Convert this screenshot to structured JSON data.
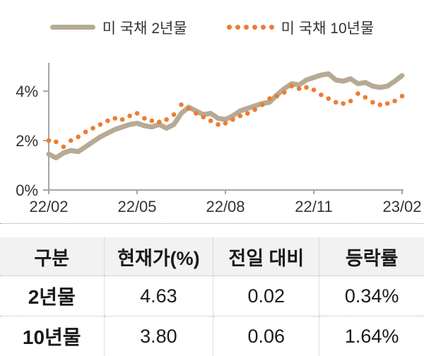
{
  "legend": {
    "series_2y_label": "미 국채 2년물",
    "series_10y_label": "미 국채 10년물"
  },
  "colors": {
    "line_2y": "#b7aa94",
    "line_10y": "#ed7d31",
    "axis": "#a6a6a6",
    "axis_text": "#333333",
    "table_header_bg": "#f2f2f2",
    "table_border": "#b3b3b3"
  },
  "chart_data": {
    "type": "line",
    "title": "",
    "xlabel": "",
    "ylabel": "",
    "x_ticks": [
      "22/02",
      "22/05",
      "22/08",
      "22/11",
      "23/02"
    ],
    "y_ticks": [
      "0%",
      "2%",
      "4%"
    ],
    "y_tick_values": [
      0,
      2,
      4
    ],
    "ylim": [
      0,
      5
    ],
    "grid": false,
    "legend_position": "top",
    "series": [
      {
        "name": "미 국채 2년물",
        "style": "solid",
        "color": "#b7aa94",
        "values": [
          1.45,
          1.3,
          1.5,
          1.6,
          1.55,
          1.75,
          1.95,
          2.15,
          2.3,
          2.45,
          2.55,
          2.65,
          2.7,
          2.6,
          2.55,
          2.65,
          2.5,
          2.65,
          3.1,
          3.35,
          3.2,
          3.05,
          3.1,
          2.9,
          2.85,
          3.0,
          3.2,
          3.3,
          3.4,
          3.5,
          3.55,
          3.85,
          4.1,
          4.3,
          4.25,
          4.45,
          4.55,
          4.65,
          4.7,
          4.45,
          4.4,
          4.5,
          4.3,
          4.35,
          4.2,
          4.15,
          4.2,
          4.4,
          4.63
        ]
      },
      {
        "name": "미 국채 10년물",
        "style": "dotted",
        "color": "#ed7d31",
        "values": [
          2.0,
          1.95,
          1.75,
          2.0,
          2.15,
          2.35,
          2.5,
          2.65,
          2.8,
          2.9,
          2.85,
          3.0,
          3.1,
          2.9,
          2.8,
          2.75,
          2.85,
          3.05,
          3.45,
          3.3,
          3.1,
          2.95,
          2.8,
          2.65,
          2.7,
          2.85,
          3.0,
          3.1,
          3.25,
          3.45,
          3.7,
          3.8,
          3.95,
          4.2,
          4.1,
          4.15,
          4.05,
          3.85,
          3.7,
          3.55,
          3.5,
          3.6,
          3.9,
          3.75,
          3.55,
          3.45,
          3.5,
          3.6,
          3.8
        ]
      }
    ]
  },
  "table": {
    "headers": [
      "구분",
      "현재가(%)",
      "전일 대비",
      "등락률"
    ],
    "rows": [
      {
        "label": "2년물",
        "current": "4.63",
        "change": "0.02",
        "rate": "0.34%"
      },
      {
        "label": "10년물",
        "current": "3.80",
        "change": "0.06",
        "rate": "1.64%"
      }
    ]
  }
}
